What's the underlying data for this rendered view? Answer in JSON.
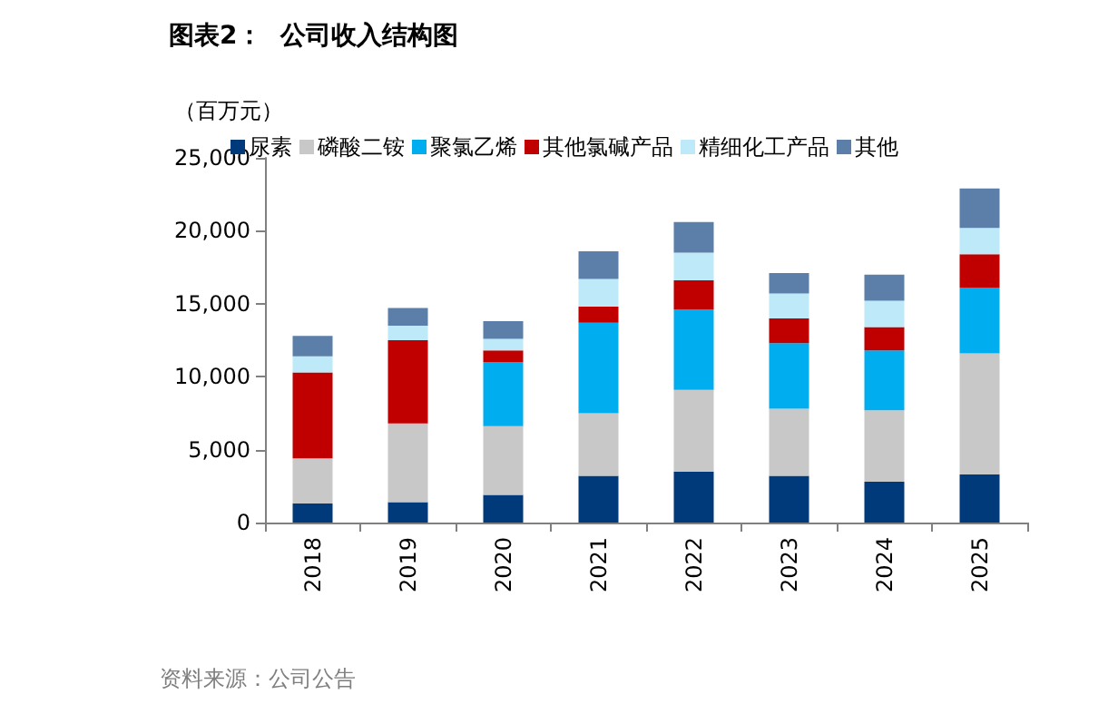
{
  "chart_data": {
    "type": "bar",
    "title": "图表2：  公司收入结构图",
    "ylabel": "（百万元）",
    "stacked": true,
    "categories": [
      "2018",
      "2019",
      "2020",
      "2021",
      "2022",
      "2023",
      "2024",
      "2025"
    ],
    "series": [
      {
        "name": "尿素",
        "color": "#003a7a",
        "values": [
          1300,
          1400,
          1900,
          3200,
          3500,
          3200,
          2800,
          3300
        ]
      },
      {
        "name": "磷酸二铵",
        "color": "#c8c8c8",
        "values": [
          3100,
          5400,
          4700,
          4300,
          5600,
          4600,
          4900,
          8300
        ]
      },
      {
        "name": "聚氯乙烯",
        "color": "#00aeef",
        "values": [
          0,
          0,
          4400,
          6200,
          5500,
          4500,
          4100,
          4500
        ]
      },
      {
        "name": "其他氯碱产品",
        "color": "#c00000",
        "values": [
          5900,
          5700,
          800,
          1100,
          2000,
          1700,
          1600,
          2300
        ]
      },
      {
        "name": "精细化工产品",
        "color": "#bde9f8",
        "values": [
          1100,
          1000,
          800,
          1900,
          1900,
          1700,
          1800,
          1800
        ]
      },
      {
        "name": "其他",
        "color": "#5b7fa8",
        "values": [
          1400,
          1200,
          1200,
          1900,
          2100,
          1400,
          1800,
          2700
        ]
      }
    ],
    "ylim": [
      0,
      25000
    ],
    "yticks": [
      0,
      {
        "value": 5000,
        "label": "5,000"
      },
      {
        "value": 10000,
        "label": "10,000"
      },
      {
        "value": 15000,
        "label": "15,000"
      },
      {
        "value": 20000,
        "label": "20,000"
      },
      {
        "value": 25000,
        "label": "25,000"
      }
    ],
    "grid": false,
    "legend": "top left",
    "annotations": [
      "资料来源：公司公告"
    ]
  }
}
